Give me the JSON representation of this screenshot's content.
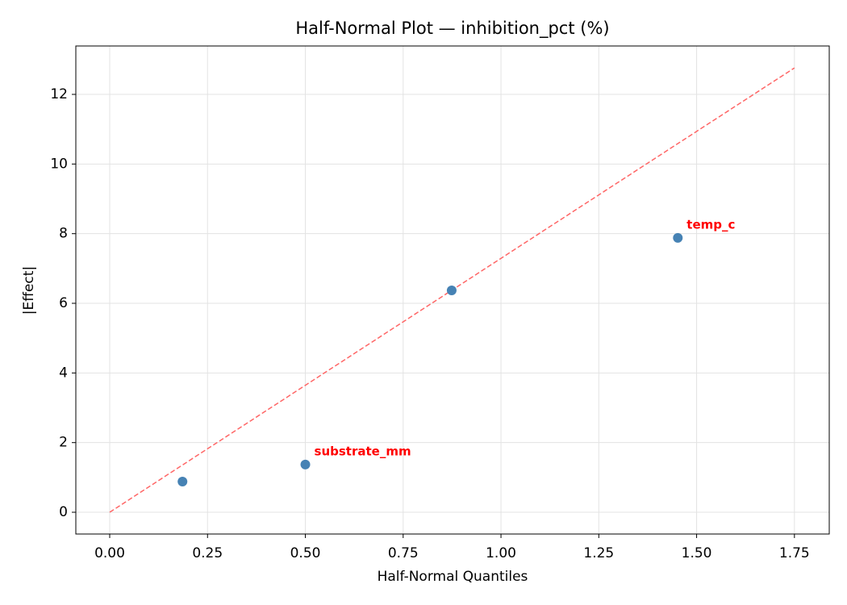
{
  "chart_data": {
    "type": "scatter",
    "title": "Half-Normal Plot — inhibition_pct (%)",
    "xlabel": "Half-Normal Quantiles",
    "ylabel": "|Effect|",
    "series": [
      {
        "color": "#4682b4",
        "x": [
          0.186,
          0.5,
          0.874,
          1.452
        ],
        "values": [
          0.88,
          1.37,
          6.37,
          7.88
        ],
        "point_labels": [
          null,
          "substrate_mm",
          null,
          "temp_c"
        ],
        "point_label_color": "#ff0000"
      }
    ],
    "reference_line": {
      "x": [
        0,
        1.75
      ],
      "y": [
        0,
        12.76
      ],
      "color": "#ff6666",
      "dashed": true
    },
    "xlim": [
      -0.0866,
      1.839
    ],
    "ylim": [
      -0.625,
      13.39
    ],
    "xticks": [
      {
        "value": 0,
        "label": "0.00"
      },
      {
        "value": 0.25,
        "label": "0.25"
      },
      {
        "value": 0.5,
        "label": "0.50"
      },
      {
        "value": 0.75,
        "label": "0.75"
      },
      {
        "value": 1,
        "label": "1.00"
      },
      {
        "value": 1.25,
        "label": "1.25"
      },
      {
        "value": 1.5,
        "label": "1.50"
      },
      {
        "value": 1.75,
        "label": "1.75"
      }
    ],
    "yticks": [
      0,
      2,
      4,
      6,
      8,
      10,
      12
    ],
    "grid": true
  }
}
